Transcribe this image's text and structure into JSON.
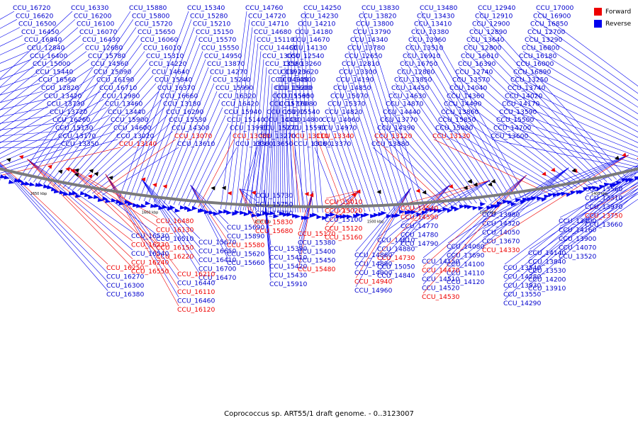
{
  "legend": [
    {
      "label": "Forward",
      "color": "#ee0000"
    },
    {
      "label": "Reverse",
      "color": "#0000ee"
    }
  ],
  "caption": "Coprococcus sp. ART55/1 draft genome. - 0..3123007",
  "colors": {
    "forward": "#ee0000",
    "reverse": "#0000ee",
    "backbone": "#7a7a7a",
    "label": "#0000cc"
  },
  "scale_labels": [
    "1300 kbp",
    "1350 kbp",
    "1400 kbp",
    "1450 kbp",
    "1500 kbp",
    "1550 kbp",
    "1600 kbp",
    "1650 kbp",
    "1700 kbp",
    "1750 kbp"
  ],
  "genes": [
    {
      "id": "CCU_16720",
      "strand": "reverse"
    },
    {
      "id": "CCU_16330",
      "strand": "reverse"
    },
    {
      "id": "CCU_15880",
      "strand": "reverse"
    },
    {
      "id": "CCU_15340",
      "strand": "reverse"
    },
    {
      "id": "CCU_14760",
      "strand": "reverse"
    },
    {
      "id": "CCU_14250",
      "strand": "reverse"
    },
    {
      "id": "CCU_13830",
      "strand": "reverse"
    },
    {
      "id": "CCU_13480",
      "strand": "reverse"
    },
    {
      "id": "CCU_12940",
      "strand": "reverse"
    },
    {
      "id": "CCU_17000",
      "strand": "reverse"
    },
    {
      "id": "CCU_16620",
      "strand": "reverse"
    },
    {
      "id": "CCU_16200",
      "strand": "reverse"
    },
    {
      "id": "CCU_15800",
      "strand": "reverse"
    },
    {
      "id": "CCU_15280",
      "strand": "reverse"
    },
    {
      "id": "CCU_14720",
      "strand": "reverse"
    },
    {
      "id": "CCU_14230",
      "strand": "reverse"
    },
    {
      "id": "CCU_13820",
      "strand": "reverse"
    },
    {
      "id": "CCU_13430",
      "strand": "reverse"
    },
    {
      "id": "CCU_12910",
      "strand": "reverse"
    },
    {
      "id": "CCU_16900",
      "strand": "reverse"
    },
    {
      "id": "CCU_16500",
      "strand": "reverse"
    },
    {
      "id": "CCU_16100",
      "strand": "reverse"
    },
    {
      "id": "CCU_15720",
      "strand": "reverse"
    },
    {
      "id": "CCU_15210",
      "strand": "reverse"
    },
    {
      "id": "CCU_14710",
      "strand": "reverse"
    },
    {
      "id": "CCU_14210",
      "strand": "reverse"
    },
    {
      "id": "CCU_13800",
      "strand": "reverse"
    },
    {
      "id": "CCU_13410",
      "strand": "reverse"
    },
    {
      "id": "CCU_12900",
      "strand": "reverse"
    },
    {
      "id": "CCU_16850",
      "strand": "reverse"
    },
    {
      "id": "CCU_16450",
      "strand": "reverse"
    },
    {
      "id": "CCU_16070",
      "strand": "reverse"
    },
    {
      "id": "CCU_15650",
      "strand": "reverse"
    },
    {
      "id": "CCU_15150",
      "strand": "reverse"
    },
    {
      "id": "CCU_14680",
      "strand": "reverse"
    },
    {
      "id": "CCU_14180",
      "strand": "reverse"
    },
    {
      "id": "CCU_13790",
      "strand": "reverse"
    },
    {
      "id": "CCU_13380",
      "strand": "reverse"
    },
    {
      "id": "CCU_12890",
      "strand": "reverse"
    },
    {
      "id": "CCU_12700",
      "strand": "reverse"
    },
    {
      "id": "CCU_16840",
      "strand": "reverse"
    },
    {
      "id": "CCU_16430",
      "strand": "reverse"
    },
    {
      "id": "CCU_16060",
      "strand": "reverse"
    },
    {
      "id": "CCU_15570",
      "strand": "reverse"
    },
    {
      "id": "CCU_15110",
      "strand": "reverse"
    },
    {
      "id": "CCU_14670",
      "strand": "reverse"
    },
    {
      "id": "CCU_14340",
      "strand": "reverse"
    },
    {
      "id": "CCU_13960",
      "strand": "reverse"
    },
    {
      "id": "CCU_13640",
      "strand": "reverse"
    },
    {
      "id": "CCU_13290",
      "strand": "reverse"
    },
    {
      "id": "CCU_12840",
      "strand": "reverse"
    },
    {
      "id": "CCU_12680",
      "strand": "reverse"
    },
    {
      "id": "CCU_16010",
      "strand": "reverse"
    },
    {
      "id": "CCU_15550",
      "strand": "reverse"
    },
    {
      "id": "CCU_14460",
      "strand": "reverse"
    },
    {
      "id": "CCU_14130",
      "strand": "reverse"
    },
    {
      "id": "CCU_13780",
      "strand": "reverse"
    },
    {
      "id": "CCU_13510",
      "strand": "reverse"
    },
    {
      "id": "CCU_12800",
      "strand": "reverse"
    },
    {
      "id": "CCU_16800",
      "strand": "reverse"
    },
    {
      "id": "CCU_16400",
      "strand": "reverse"
    },
    {
      "id": "CCU_15780",
      "strand": "reverse"
    },
    {
      "id": "CCU_15310",
      "strand": "reverse"
    },
    {
      "id": "CCU_14950",
      "strand": "reverse"
    },
    {
      "id": "CCU_13050",
      "strand": "reverse"
    },
    {
      "id": "CCU_12540",
      "strand": "reverse"
    },
    {
      "id": "CCU_12650",
      "strand": "reverse"
    },
    {
      "id": "CCU_16910",
      "strand": "reverse"
    },
    {
      "id": "CCU_16610",
      "strand": "reverse"
    },
    {
      "id": "CCU_16180",
      "strand": "reverse"
    },
    {
      "id": "CCU_15000",
      "strand": "reverse"
    },
    {
      "id": "CCU_14560",
      "strand": "reverse"
    },
    {
      "id": "CCU_14220",
      "strand": "reverse"
    },
    {
      "id": "CCU_13870",
      "strand": "reverse"
    },
    {
      "id": "CCU_13580",
      "strand": "reverse"
    },
    {
      "id": "CCU_13260",
      "strand": "reverse"
    },
    {
      "id": "CCU_12810",
      "strand": "reverse"
    },
    {
      "id": "CCU_16750",
      "strand": "reverse"
    },
    {
      "id": "CCU_16390",
      "strand": "reverse"
    },
    {
      "id": "CCU_16000",
      "strand": "reverse"
    },
    {
      "id": "CCU_15440",
      "strand": "reverse"
    },
    {
      "id": "CCU_15090",
      "strand": "reverse"
    },
    {
      "id": "CCU_14640",
      "strand": "reverse"
    },
    {
      "id": "CCU_14270",
      "strand": "reverse"
    },
    {
      "id": "CCU_13920",
      "strand": "reverse"
    },
    {
      "id": "CCU_13620",
      "strand": "reverse"
    },
    {
      "id": "CCU_13300",
      "strand": "reverse"
    },
    {
      "id": "CCU_12880",
      "strand": "reverse"
    },
    {
      "id": "CCU_12740",
      "strand": "reverse"
    },
    {
      "id": "CCU_16890",
      "strand": "reverse"
    },
    {
      "id": "CCU_16560",
      "strand": "reverse"
    },
    {
      "id": "CCU_16190",
      "strand": "reverse"
    },
    {
      "id": "CCU_15840",
      "strand": "reverse"
    },
    {
      "id": "CCU_15240",
      "strand": "reverse"
    },
    {
      "id": "CCU_14930",
      "strand": "reverse"
    },
    {
      "id": "CCU_14500",
      "strand": "reverse"
    },
    {
      "id": "CCU_14190",
      "strand": "reverse"
    },
    {
      "id": "CCU_13850",
      "strand": "reverse"
    },
    {
      "id": "CCU_13570",
      "strand": "reverse"
    },
    {
      "id": "CCU_13250",
      "strand": "reverse"
    },
    {
      "id": "CCU_12820",
      "strand": "reverse"
    },
    {
      "id": "CCU_16710",
      "strand": "reverse"
    },
    {
      "id": "CCU_16370",
      "strand": "reverse"
    },
    {
      "id": "CCU_15990",
      "strand": "reverse"
    },
    {
      "id": "CCU_15600",
      "strand": "reverse"
    },
    {
      "id": "CCU_15200",
      "strand": "reverse"
    },
    {
      "id": "CCU_14850",
      "strand": "reverse"
    },
    {
      "id": "CCU_14450",
      "strand": "reverse"
    },
    {
      "id": "CCU_14040",
      "strand": "reverse"
    },
    {
      "id": "CCU_13740",
      "strand": "reverse"
    },
    {
      "id": "CCU_13420",
      "strand": "reverse"
    },
    {
      "id": "CCU_12980",
      "strand": "reverse"
    },
    {
      "id": "CCU_16660",
      "strand": "reverse"
    },
    {
      "id": "CCU_16320",
      "strand": "reverse"
    },
    {
      "id": "CCU_15950",
      "strand": "reverse"
    },
    {
      "id": "CCU_15560",
      "strand": "reverse"
    },
    {
      "id": "CCU_15070",
      "strand": "reverse"
    },
    {
      "id": "CCU_14630",
      "strand": "reverse"
    },
    {
      "id": "CCU_14360",
      "strand": "reverse"
    },
    {
      "id": "CCU_14020",
      "strand": "reverse"
    },
    {
      "id": "CCU_13730",
      "strand": "reverse"
    },
    {
      "id": "CCU_13460",
      "strand": "reverse"
    },
    {
      "id": "CCU_13180",
      "strand": "reverse"
    },
    {
      "id": "CCU_16420",
      "strand": "reverse"
    },
    {
      "id": "CCU_16080",
      "strand": "reverse"
    },
    {
      "id": "CCU_15770",
      "strand": "reverse"
    },
    {
      "id": "CCU_15370",
      "strand": "reverse"
    },
    {
      "id": "CCU_14870",
      "strand": "reverse"
    },
    {
      "id": "CCU_14490",
      "strand": "reverse"
    },
    {
      "id": "CCU_14170",
      "strand": "reverse"
    },
    {
      "id": "CCU_13720",
      "strand": "reverse"
    },
    {
      "id": "CCU_13440",
      "strand": "reverse"
    },
    {
      "id": "CCU_16290",
      "strand": "reverse"
    },
    {
      "id": "CCU_15940",
      "strand": "reverse"
    },
    {
      "id": "CCU_15540",
      "strand": "reverse"
    },
    {
      "id": "CCU_15190",
      "strand": "reverse"
    },
    {
      "id": "CCU_14820",
      "strand": "reverse"
    },
    {
      "id": "CCU_14440",
      "strand": "reverse"
    },
    {
      "id": "CCU_13860",
      "strand": "reverse"
    },
    {
      "id": "CCU_13590",
      "strand": "reverse"
    },
    {
      "id": "CCU_16260",
      "strand": "reverse"
    },
    {
      "id": "CCU_15900",
      "strand": "reverse"
    },
    {
      "id": "CCU_15530",
      "strand": "reverse"
    },
    {
      "id": "CCU_15140",
      "strand": "reverse"
    },
    {
      "id": "CCU_14800",
      "strand": "reverse"
    },
    {
      "id": "CCU_14430",
      "strand": "reverse"
    },
    {
      "id": "CCU_14060",
      "strand": "reverse"
    },
    {
      "id": "CCU_13770",
      "strand": "reverse"
    },
    {
      "id": "CCU_15850",
      "strand": "reverse"
    },
    {
      "id": "CCU_15500",
      "strand": "reverse"
    },
    {
      "id": "CCU_15130",
      "strand": "reverse"
    },
    {
      "id": "CCU_14600",
      "strand": "reverse"
    },
    {
      "id": "CCU_14300",
      "strand": "reverse"
    },
    {
      "id": "CCU_13990",
      "strand": "reverse"
    },
    {
      "id": "CCU_15590",
      "strand": "reverse"
    },
    {
      "id": "CCU_15270",
      "strand": "reverse"
    },
    {
      "id": "CCU_14970",
      "strand": "reverse"
    },
    {
      "id": "CCU_14390",
      "strand": "reverse"
    },
    {
      "id": "CCU_15080",
      "strand": "reverse"
    },
    {
      "id": "CCU_14700",
      "strand": "reverse"
    },
    {
      "id": "CCU_13170",
      "strand": "reverse"
    },
    {
      "id": "CCU_13020",
      "strand": "reverse"
    },
    {
      "id": "CCU_13070",
      "strand": "forward"
    },
    {
      "id": "CCU_13080",
      "strand": "forward"
    },
    {
      "id": "CCU_13110",
      "strand": "forward"
    },
    {
      "id": "CCU_13270",
      "strand": "reverse"
    },
    {
      "id": "CCU_13340",
      "strand": "forward"
    },
    {
      "id": "CCU_13120",
      "strand": "forward"
    },
    {
      "id": "CCU_13130",
      "strand": "forward"
    },
    {
      "id": "CCU_13600",
      "strand": "reverse"
    },
    {
      "id": "CCU_13350",
      "strand": "reverse"
    },
    {
      "id": "CCU_13140",
      "strand": "forward"
    },
    {
      "id": "CCU_13610",
      "strand": "reverse"
    },
    {
      "id": "CCU_13360",
      "strand": "reverse"
    },
    {
      "id": "CCU_13160",
      "strand": "reverse"
    },
    {
      "id": "CCU_13650",
      "strand": "reverse"
    },
    {
      "id": "CCU_13370",
      "strand": "reverse"
    },
    {
      "id": "CCU_13880",
      "strand": "reverse"
    },
    {
      "id": "CCU_13560",
      "strand": "reverse"
    },
    {
      "id": "CCU_13310",
      "strand": "reverse"
    },
    {
      "id": "CCU_13970",
      "strand": "reverse"
    },
    {
      "id": "CCU_13750",
      "strand": "forward"
    },
    {
      "id": "CCU_13660",
      "strand": "reverse"
    },
    {
      "id": "CCU_13400",
      "strand": "reverse"
    },
    {
      "id": "CCU_14160",
      "strand": "reverse"
    },
    {
      "id": "CCU_13900",
      "strand": "reverse"
    },
    {
      "id": "CCU_14070",
      "strand": "reverse"
    },
    {
      "id": "CCU_13520",
      "strand": "reverse"
    },
    {
      "id": "CCU_14140",
      "strand": "reverse"
    },
    {
      "id": "CCU_13840",
      "strand": "reverse"
    },
    {
      "id": "CCU_13530",
      "strand": "reverse"
    },
    {
      "id": "CCU_14200",
      "strand": "reverse"
    },
    {
      "id": "CCU_13910",
      "strand": "reverse"
    },
    {
      "id": "CCU_13540",
      "strand": "reverse"
    },
    {
      "id": "CCU_14280",
      "strand": "reverse"
    },
    {
      "id": "CCU_13930",
      "strand": "reverse"
    },
    {
      "id": "CCU_13550",
      "strand": "reverse"
    },
    {
      "id": "CCU_14290",
      "strand": "reverse"
    },
    {
      "id": "CCU_13980",
      "strand": "reverse"
    },
    {
      "id": "CCU_14320",
      "strand": "reverse"
    },
    {
      "id": "CCU_14050",
      "strand": "reverse"
    },
    {
      "id": "CCU_13670",
      "strand": "reverse"
    },
    {
      "id": "CCU_14330",
      "strand": "forward"
    },
    {
      "id": "CCU_14080",
      "strand": "reverse"
    },
    {
      "id": "CCU_13690",
      "strand": "reverse"
    },
    {
      "id": "CCU_14100",
      "strand": "reverse"
    },
    {
      "id": "CCU_14110",
      "strand": "reverse"
    },
    {
      "id": "CCU_14120",
      "strand": "reverse"
    },
    {
      "id": "CCU_14150",
      "strand": "reverse"
    },
    {
      "id": "CCU_14470",
      "strand": "forward"
    },
    {
      "id": "CCU_14510",
      "strand": "reverse"
    },
    {
      "id": "CCU_14520",
      "strand": "reverse"
    },
    {
      "id": "CCU_14530",
      "strand": "forward"
    },
    {
      "id": "CCU_14540",
      "strand": "forward"
    },
    {
      "id": "CCU_14590",
      "strand": "forward"
    },
    {
      "id": "CCU_14770",
      "strand": "reverse"
    },
    {
      "id": "CCU_14780",
      "strand": "reverse"
    },
    {
      "id": "CCU_14790",
      "strand": "reverse"
    },
    {
      "id": "CCU_14810",
      "strand": "reverse"
    },
    {
      "id": "CCU_14880",
      "strand": "reverse"
    },
    {
      "id": "CCU_14730",
      "strand": "forward"
    },
    {
      "id": "CCU_15050",
      "strand": "reverse"
    },
    {
      "id": "CCU_14840",
      "strand": "reverse"
    },
    {
      "id": "CCU_14860",
      "strand": "reverse"
    },
    {
      "id": "CCU_14890",
      "strand": "reverse"
    },
    {
      "id": "CCU_14900",
      "strand": "reverse"
    },
    {
      "id": "CCU_14940",
      "strand": "forward"
    },
    {
      "id": "CCU_14960",
      "strand": "reverse"
    },
    {
      "id": "CCU_15010",
      "strand": "forward"
    },
    {
      "id": "CCU_15020",
      "strand": "forward"
    },
    {
      "id": "CCU_15100",
      "strand": "reverse"
    },
    {
      "id": "CCU_15120",
      "strand": "forward"
    },
    {
      "id": "CCU_15160",
      "strand": "forward"
    },
    {
      "id": "CCU_15170",
      "strand": "forward"
    },
    {
      "id": "CCU_15380",
      "strand": "reverse"
    },
    {
      "id": "CCU_15400",
      "strand": "reverse"
    },
    {
      "id": "CCU_15450",
      "strand": "reverse"
    },
    {
      "id": "CCU_15480",
      "strand": "forward"
    },
    {
      "id": "CCU_15390",
      "strand": "reverse"
    },
    {
      "id": "CCU_15410",
      "strand": "reverse"
    },
    {
      "id": "CCU_15420",
      "strand": "reverse"
    },
    {
      "id": "CCU_15430",
      "strand": "reverse"
    },
    {
      "id": "CCU_15910",
      "strand": "reverse"
    },
    {
      "id": "CCU_15730",
      "strand": "reverse"
    },
    {
      "id": "CCU_15750",
      "strand": "reverse"
    },
    {
      "id": "CCU_15790",
      "strand": "reverse"
    },
    {
      "id": "CCU_15830",
      "strand": "forward"
    },
    {
      "id": "CCU_15680",
      "strand": "forward"
    },
    {
      "id": "CCU_15690",
      "strand": "reverse"
    },
    {
      "id": "CCU_15890",
      "strand": "reverse"
    },
    {
      "id": "CCU_15580",
      "strand": "forward"
    },
    {
      "id": "CCU_15620",
      "strand": "reverse"
    },
    {
      "id": "CCU_15660",
      "strand": "reverse"
    },
    {
      "id": "CCU_15670",
      "strand": "reverse"
    },
    {
      "id": "CCU_16650",
      "strand": "reverse"
    },
    {
      "id": "CCU_16410",
      "strand": "reverse"
    },
    {
      "id": "CCU_16700",
      "strand": "reverse"
    },
    {
      "id": "CCU_16470",
      "strand": "reverse"
    },
    {
      "id": "CCU_16210",
      "strand": "forward"
    },
    {
      "id": "CCU_16440",
      "strand": "reverse"
    },
    {
      "id": "CCU_16110",
      "strand": "forward"
    },
    {
      "id": "CCU_16460",
      "strand": "reverse"
    },
    {
      "id": "CCU_16120",
      "strand": "forward"
    },
    {
      "id": "CCU_16480",
      "strand": "forward"
    },
    {
      "id": "CCU_16130",
      "strand": "forward"
    },
    {
      "id": "CCU_16510",
      "strand": "reverse"
    },
    {
      "id": "CCU_16150",
      "strand": "forward"
    },
    {
      "id": "CCU_16220",
      "strand": "forward"
    },
    {
      "id": "CCU_16530",
      "strand": "reverse"
    },
    {
      "id": "CCU_16230",
      "strand": "forward"
    },
    {
      "id": "CCU_16540",
      "strand": "reverse"
    },
    {
      "id": "CCU_16240",
      "strand": "forward"
    },
    {
      "id": "CCU_16550",
      "strand": "forward"
    },
    {
      "id": "CCU_16250",
      "strand": "forward"
    },
    {
      "id": "CCU_16270",
      "strand": "reverse"
    },
    {
      "id": "CCU_16300",
      "strand": "reverse"
    },
    {
      "id": "CCU_16380",
      "strand": "reverse"
    }
  ]
}
